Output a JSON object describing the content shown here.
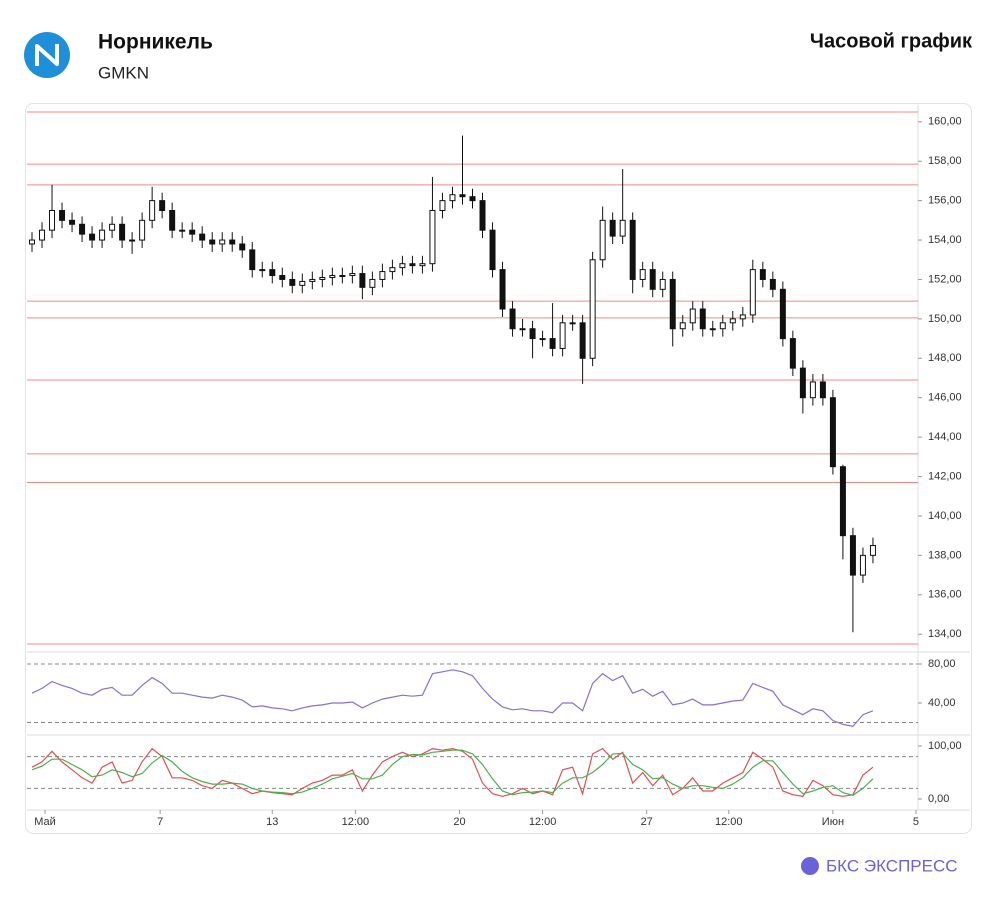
{
  "header": {
    "company": "Норникель",
    "ticker": "GMKN",
    "chart_kind": "Часовой график"
  },
  "footer": {
    "brand": "БКС ЭКСПРЕСС"
  },
  "chart_data": [
    {
      "type": "candlestick",
      "color": "#111111",
      "level_color": "#f08a8a",
      "xlim": [
        -0.5,
        88.5
      ],
      "ylim": [
        133.3,
        160.7
      ],
      "yticks": [
        {
          "value": 134,
          "label": "134,00"
        },
        {
          "value": 136,
          "label": "136,00"
        },
        {
          "value": 138,
          "label": "138,00"
        },
        {
          "value": 140,
          "label": "140,00"
        },
        {
          "value": 142,
          "label": "142,00"
        },
        {
          "value": 144,
          "label": "144,00"
        },
        {
          "value": 146,
          "label": "146,00"
        },
        {
          "value": 148,
          "label": "148,00"
        },
        {
          "value": 150,
          "label": "150,00"
        },
        {
          "value": 152,
          "label": "152,00"
        },
        {
          "value": 154,
          "label": "154,00"
        },
        {
          "value": 156,
          "label": "156,00"
        },
        {
          "value": 158,
          "label": "158,00"
        },
        {
          "value": 160,
          "label": "160,00"
        }
      ],
      "levels": [
        160.5,
        157.85,
        156.8,
        150.9,
        150.05,
        146.9,
        143.15,
        141.7,
        133.5
      ],
      "open": [
        153.8,
        154.0,
        154.5,
        155.5,
        155.0,
        154.8,
        154.3,
        154.0,
        154.5,
        154.8,
        154.0,
        154.0,
        155.0,
        156.0,
        155.5,
        154.5,
        154.5,
        154.3,
        154.0,
        153.8,
        154.0,
        153.8,
        153.5,
        152.5,
        152.5,
        152.2,
        152.0,
        151.7,
        151.9,
        152.0,
        152.1,
        152.2,
        152.2,
        152.3,
        151.6,
        152.0,
        152.4,
        152.6,
        152.8,
        152.7,
        152.8,
        155.5,
        156.0,
        156.3,
        156.2,
        156.0,
        154.5,
        152.5,
        150.5,
        149.5,
        149.5,
        149.0,
        149.0,
        148.5,
        149.8,
        149.8,
        148.0,
        153.0,
        155.0,
        154.2,
        155.0,
        152.0,
        152.5,
        151.5,
        152.0,
        149.5,
        149.8,
        150.5,
        149.5,
        149.5,
        149.8,
        150.0,
        150.2,
        152.5,
        152.0,
        151.5,
        149.0,
        147.5,
        146.0,
        146.8,
        146.0,
        142.5,
        139.0,
        137.0,
        138.0
      ],
      "high": [
        154.4,
        154.9,
        156.8,
        155.9,
        155.4,
        155.2,
        154.7,
        154.9,
        155.2,
        155.2,
        154.4,
        155.4,
        156.7,
        156.4,
        155.9,
        154.9,
        154.9,
        154.7,
        154.4,
        154.4,
        154.4,
        154.2,
        153.9,
        152.9,
        152.9,
        152.6,
        152.4,
        152.3,
        152.4,
        152.5,
        152.6,
        152.6,
        152.7,
        152.7,
        152.4,
        152.8,
        153.0,
        153.2,
        153.2,
        153.2,
        157.2,
        156.4,
        156.7,
        159.3,
        156.6,
        156.4,
        154.9,
        152.9,
        150.9,
        150.0,
        149.9,
        149.4,
        150.8,
        150.2,
        150.2,
        150.2,
        153.4,
        155.7,
        155.4,
        157.6,
        155.4,
        152.9,
        152.9,
        152.4,
        152.4,
        150.2,
        150.9,
        150.9,
        149.9,
        150.2,
        150.4,
        150.6,
        153.0,
        152.9,
        152.4,
        151.9,
        149.4,
        147.9,
        147.2,
        147.2,
        146.4,
        142.6,
        139.4,
        138.4,
        138.9
      ],
      "low": [
        153.4,
        153.6,
        154.1,
        154.6,
        154.4,
        153.9,
        153.6,
        153.6,
        154.1,
        153.6,
        153.3,
        153.6,
        154.6,
        155.1,
        154.1,
        154.1,
        153.9,
        153.6,
        153.4,
        153.4,
        153.4,
        153.1,
        152.1,
        152.1,
        151.8,
        151.6,
        151.3,
        151.3,
        151.5,
        151.6,
        151.7,
        151.8,
        151.8,
        151.0,
        151.2,
        151.6,
        152.0,
        152.2,
        152.3,
        152.3,
        152.4,
        155.1,
        155.6,
        155.8,
        155.6,
        154.1,
        152.1,
        150.1,
        149.1,
        149.1,
        148.0,
        148.6,
        148.1,
        148.1,
        149.4,
        146.7,
        147.6,
        152.6,
        153.8,
        153.8,
        151.3,
        151.6,
        151.1,
        151.1,
        148.6,
        149.1,
        149.4,
        149.1,
        149.1,
        149.1,
        149.4,
        149.6,
        149.8,
        151.6,
        151.1,
        148.6,
        147.1,
        145.2,
        145.6,
        145.6,
        142.1,
        137.8,
        134.1,
        136.6,
        137.6
      ],
      "close": [
        154.0,
        154.5,
        155.5,
        155.0,
        154.8,
        154.3,
        154.0,
        154.5,
        154.8,
        154.0,
        154.0,
        155.0,
        156.0,
        155.5,
        154.5,
        154.5,
        154.3,
        154.0,
        153.8,
        154.0,
        153.8,
        153.5,
        152.5,
        152.5,
        152.2,
        152.0,
        151.7,
        151.9,
        152.0,
        152.1,
        152.2,
        152.2,
        152.3,
        151.6,
        152.0,
        152.4,
        152.6,
        152.8,
        152.7,
        152.8,
        155.5,
        156.0,
        156.3,
        156.2,
        156.0,
        154.5,
        152.5,
        150.5,
        149.5,
        149.5,
        149.0,
        149.0,
        148.5,
        149.8,
        149.8,
        148.0,
        153.0,
        155.0,
        154.2,
        155.0,
        152.0,
        152.5,
        151.5,
        152.0,
        149.5,
        149.8,
        150.5,
        149.5,
        149.5,
        149.8,
        150.0,
        150.2,
        152.5,
        152.0,
        151.5,
        149.0,
        147.5,
        146.0,
        146.8,
        146.0,
        142.5,
        139.0,
        137.0,
        138.0,
        138.5
      ]
    },
    {
      "type": "line",
      "xlim": [
        -0.5,
        88.5
      ],
      "ylim": [
        12.3,
        84.1
      ],
      "yticks": [
        {
          "value": 40,
          "label": "40,00"
        },
        {
          "value": 80,
          "label": "80,00"
        }
      ],
      "bands": [
        80,
        20
      ],
      "series": [
        {
          "color": "#8a6fd1",
          "values": [
            50,
            55,
            62,
            58,
            55,
            50,
            48,
            54,
            56,
            48,
            48,
            58,
            66,
            60,
            50,
            50,
            48,
            46,
            45,
            48,
            46,
            43,
            36,
            37,
            35,
            34,
            32,
            35,
            37,
            38,
            40,
            40,
            41,
            35,
            40,
            44,
            46,
            48,
            47,
            48,
            70,
            72,
            74,
            72,
            68,
            55,
            44,
            36,
            33,
            34,
            32,
            32,
            30,
            40,
            40,
            32,
            60,
            70,
            63,
            68,
            50,
            54,
            47,
            52,
            38,
            40,
            44,
            38,
            38,
            40,
            42,
            43,
            60,
            56,
            52,
            38,
            33,
            28,
            34,
            32,
            22,
            18,
            16,
            28,
            32
          ]
        }
      ]
    },
    {
      "type": "line",
      "xlim": [
        -0.5,
        88.5
      ],
      "ylim": [
        -17,
        111.3
      ],
      "yticks": [
        {
          "value": 0,
          "label": "0,00"
        },
        {
          "value": 100,
          "label": "100,00"
        }
      ],
      "bands": [
        80,
        20
      ],
      "xticks": [
        {
          "value": 1.3,
          "label": "Май"
        },
        {
          "value": 12.8,
          "label": "7"
        },
        {
          "value": 24,
          "label": "13"
        },
        {
          "value": 32.3,
          "label": "12:00"
        },
        {
          "value": 42.7,
          "label": "20"
        },
        {
          "value": 51,
          "label": "12:00"
        },
        {
          "value": 61.4,
          "label": "27"
        },
        {
          "value": 69.6,
          "label": "12:00"
        },
        {
          "value": 80,
          "label": "Июн"
        },
        {
          "value": 88.3,
          "label": "5"
        }
      ],
      "series": [
        {
          "color": "#e05050",
          "values": [
            60,
            70,
            90,
            70,
            55,
            40,
            30,
            60,
            70,
            30,
            35,
            70,
            95,
            80,
            40,
            40,
            35,
            25,
            20,
            35,
            30,
            20,
            10,
            15,
            12,
            10,
            8,
            20,
            30,
            35,
            45,
            45,
            55,
            15,
            45,
            70,
            80,
            88,
            80,
            85,
            95,
            92,
            95,
            90,
            75,
            30,
            10,
            5,
            10,
            20,
            10,
            15,
            8,
            55,
            60,
            10,
            85,
            95,
            75,
            88,
            30,
            50,
            25,
            45,
            8,
            20,
            40,
            15,
            15,
            30,
            40,
            50,
            88,
            75,
            60,
            15,
            8,
            5,
            35,
            25,
            8,
            5,
            8,
            45,
            60
          ]
        },
        {
          "color": "#4caf50",
          "values": [
            55,
            62,
            75,
            75,
            65,
            55,
            42,
            45,
            55,
            50,
            42,
            48,
            68,
            82,
            70,
            52,
            40,
            33,
            28,
            28,
            30,
            28,
            20,
            15,
            13,
            12,
            10,
            13,
            20,
            28,
            38,
            43,
            48,
            38,
            38,
            45,
            65,
            80,
            84,
            83,
            88,
            90,
            92,
            92,
            85,
            65,
            38,
            15,
            8,
            12,
            13,
            15,
            12,
            30,
            40,
            40,
            50,
            65,
            85,
            86,
            65,
            55,
            38,
            40,
            28,
            20,
            25,
            25,
            22,
            20,
            28,
            40,
            60,
            72,
            72,
            50,
            28,
            10,
            15,
            22,
            25,
            12,
            7,
            20,
            38
          ]
        }
      ]
    }
  ]
}
